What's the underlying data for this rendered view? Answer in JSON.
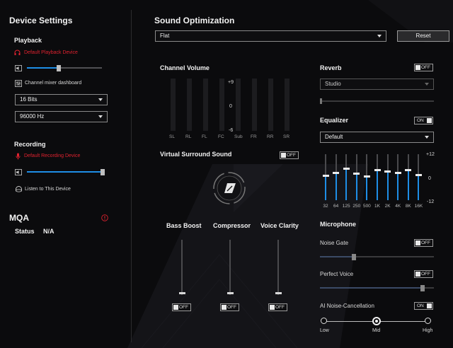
{
  "left": {
    "title": "Device Settings",
    "playback": {
      "heading": "Playback",
      "default_device": "Default Playback Device",
      "volume": 0.42,
      "mixer_label": "Channel mixer dashboard",
      "bits": "16 Bits",
      "rate": "96000 Hz"
    },
    "recording": {
      "heading": "Recording",
      "default_device": "Default Recording Device",
      "volume": 0.97,
      "listen_label": "Listen to This Device"
    },
    "mqa": {
      "heading": "MQA",
      "status_label": "Status",
      "status_value": "N/A"
    }
  },
  "main": {
    "title": "Sound Optimization",
    "preset": "Flat",
    "reset_label": "Reset",
    "channel_volume": {
      "heading": "Channel Volume",
      "channels": [
        "SL",
        "RL",
        "FL",
        "FC",
        "Sub",
        "FR",
        "RR",
        "SR"
      ],
      "scale": [
        "+9",
        "0",
        "-6"
      ]
    },
    "virtual_surround": {
      "heading": "Virtual Surround Sound",
      "state": "OFF"
    },
    "bass_boost": {
      "heading": "Bass Boost",
      "state": "OFF",
      "level": 0.0
    },
    "compressor": {
      "heading": "Compressor",
      "state": "OFF",
      "level": 0.0
    },
    "voice_clarity": {
      "heading": "Voice Clarity",
      "state": "OFF",
      "level": 0.0
    }
  },
  "right": {
    "reverb": {
      "heading": "Reverb",
      "state": "OFF",
      "preset": "Studio"
    },
    "equalizer": {
      "heading": "Equalizer",
      "state": "ON",
      "preset": "Default",
      "bands": [
        "32",
        "64",
        "125",
        "250",
        "500",
        "1K",
        "2K",
        "4K",
        "8K",
        "16K"
      ],
      "gains": [
        0.8,
        2.2,
        4.6,
        2.0,
        0.3,
        3.6,
        3.0,
        2.4,
        3.7,
        1.0
      ],
      "scale": [
        "+12",
        "0",
        "-12"
      ]
    },
    "microphone": {
      "heading": "Microphone",
      "noise_gate": {
        "label": "Noise Gate",
        "state": "OFF",
        "level": 0.3
      },
      "perfect_voice": {
        "label": "Perfect Voice",
        "state": "OFF",
        "level": 0.9
      },
      "ai_nc": {
        "label": "AI Noise-Cancellation",
        "state": "ON",
        "levels": [
          "Low",
          "Mid",
          "High"
        ],
        "selected": "Mid"
      }
    }
  },
  "colors": {
    "accent": "#1e8ee6",
    "alert": "#e0222f",
    "background": "#0b0b0d"
  }
}
